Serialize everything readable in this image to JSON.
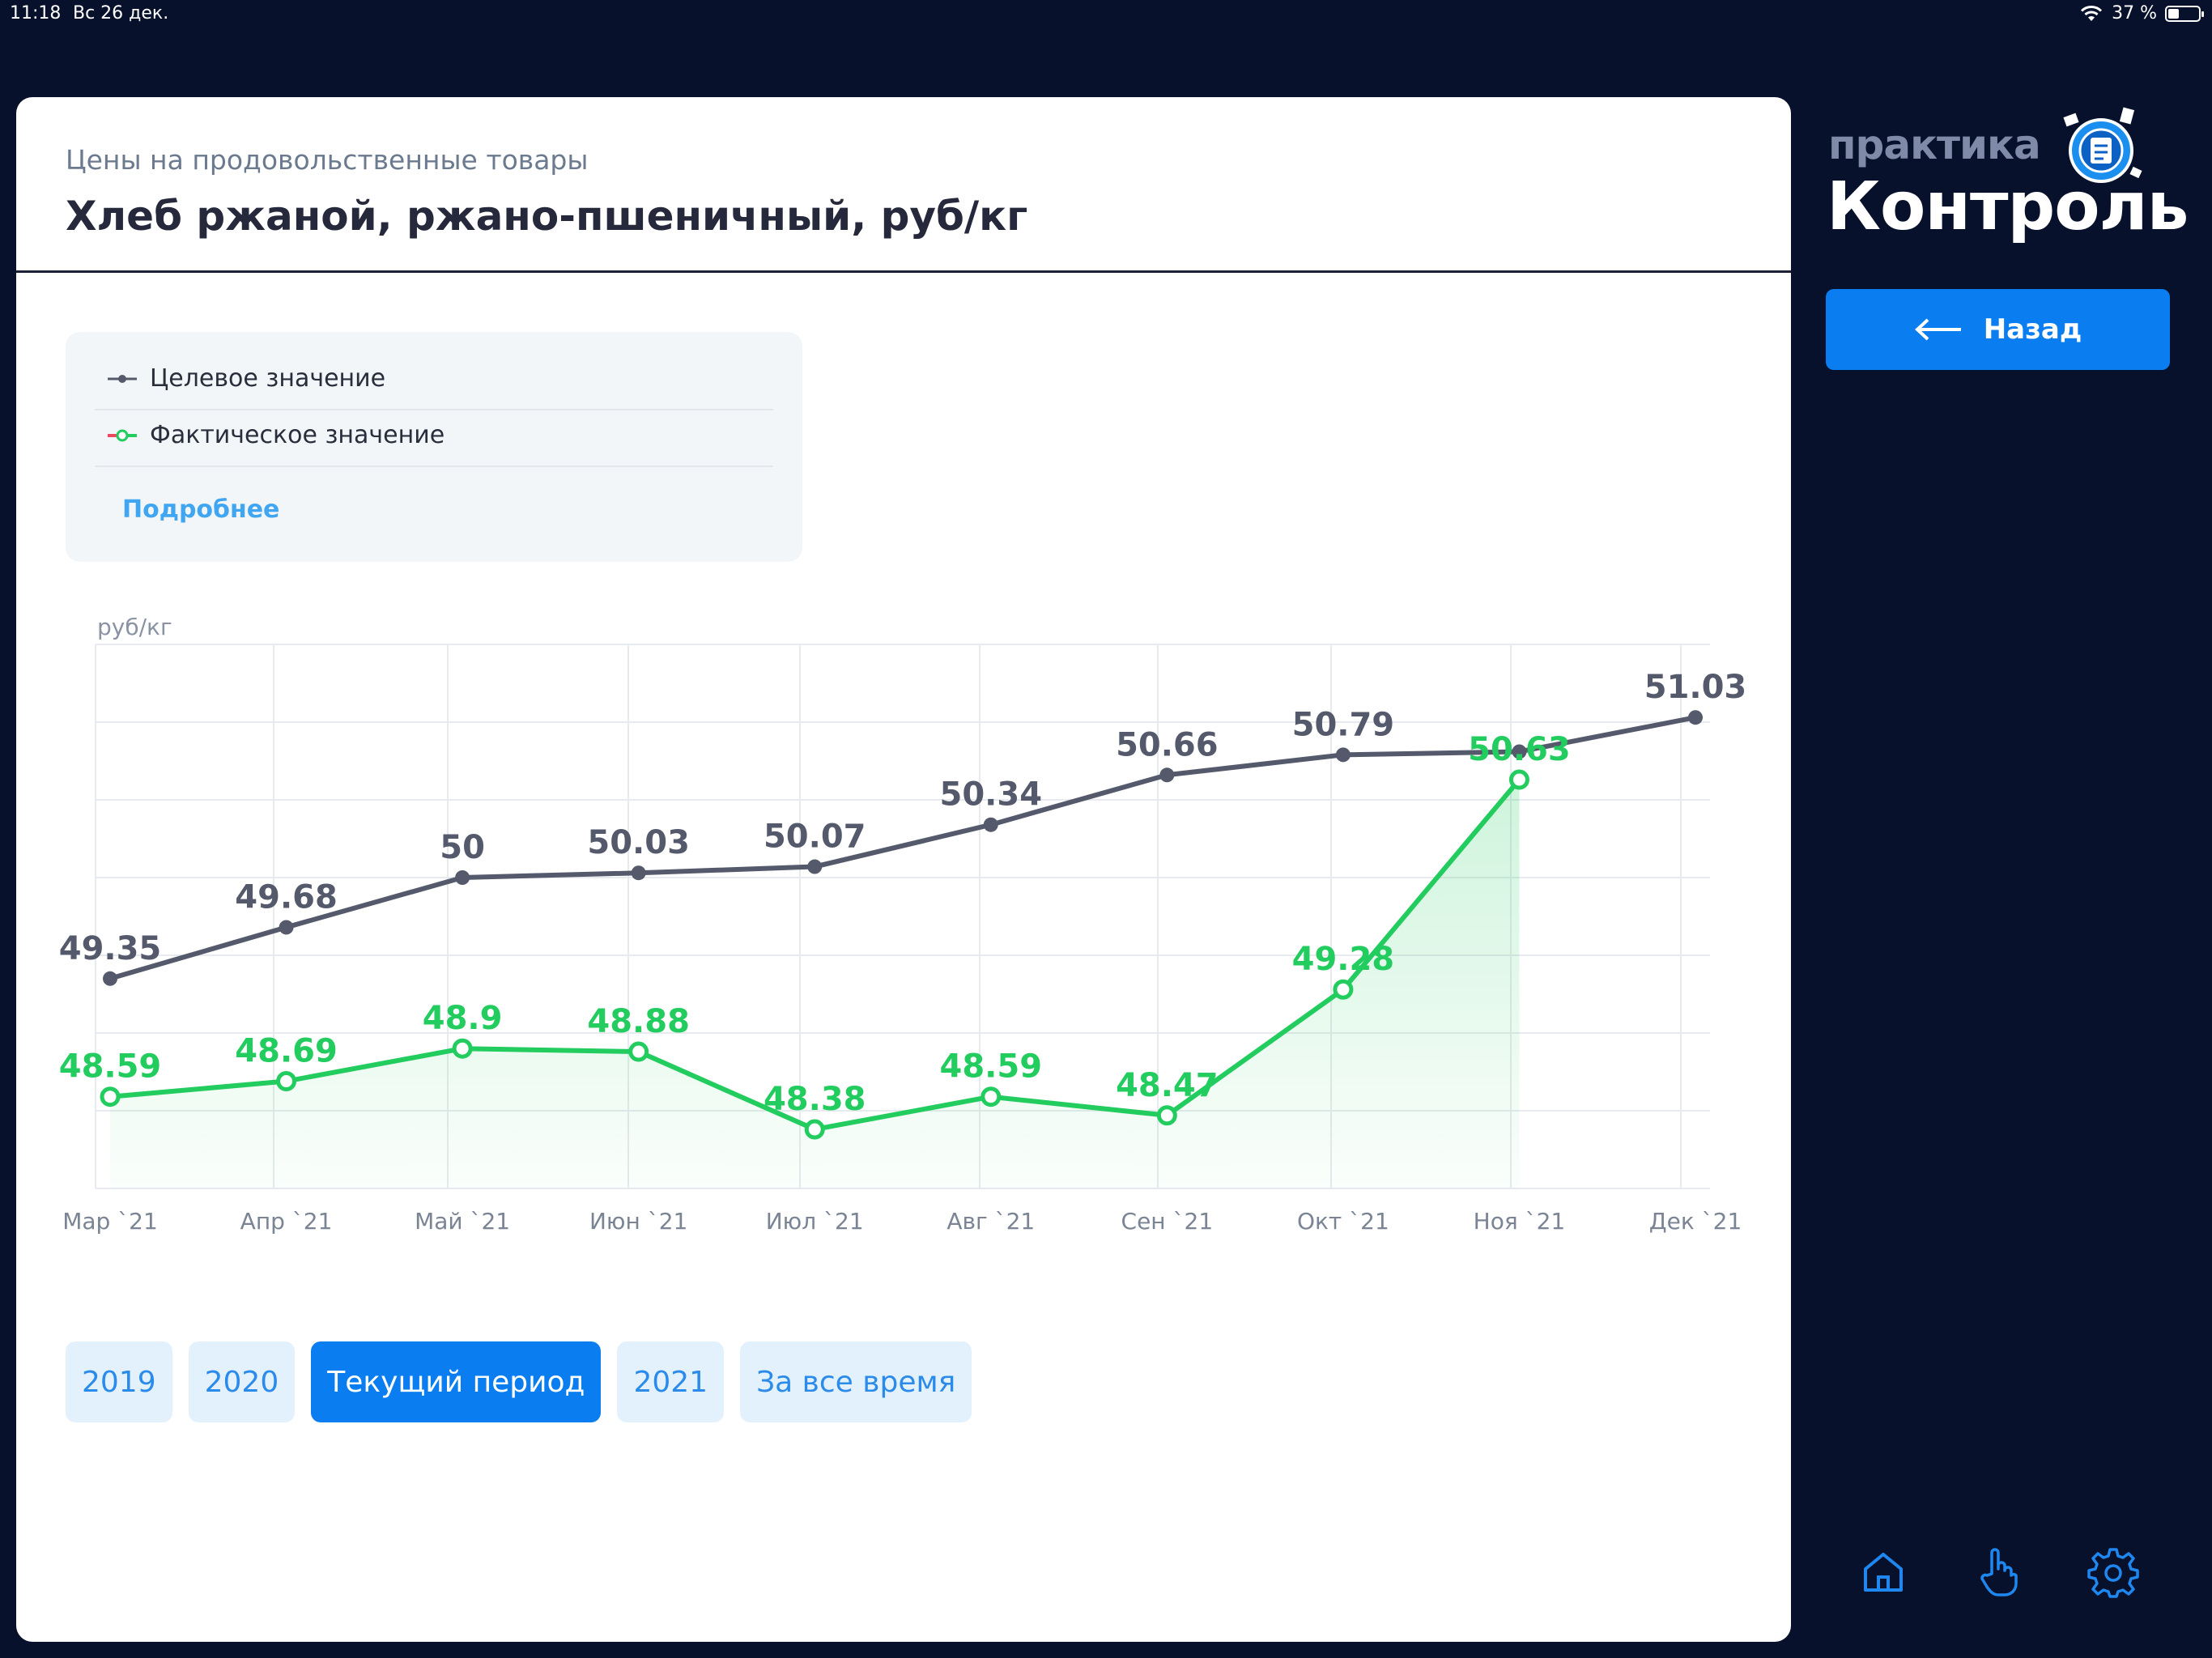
{
  "status": {
    "time": "11:18",
    "date": "Вс 26 дек.",
    "battery": "37 %",
    "battery_level": 0.37
  },
  "header": {
    "subtitle": "Цены на продовольственные товары",
    "title": "Хлеб ржаной, ржано-пшеничный, руб/кг"
  },
  "legend": {
    "target_label": "Целевое значение",
    "actual_label": "Фактическое значение",
    "more_link": "Подробнее"
  },
  "chart_data": {
    "type": "line",
    "ylabel": "руб/кг",
    "categories": [
      "Мар `21",
      "Апр `21",
      "Май `21",
      "Июн `21",
      "Июл `21",
      "Авг `21",
      "Сен `21",
      "Окт `21",
      "Ноя `21",
      "Дек `21"
    ],
    "grid": true,
    "series": [
      {
        "name": "Целевое значение",
        "color": "#545a6c",
        "values": [
          49.35,
          49.68,
          50,
          50.03,
          50.07,
          50.34,
          50.66,
          50.79,
          50.81,
          51.03
        ],
        "labels": [
          "49.35",
          "49.68",
          "50",
          "50.03",
          "50.07",
          "50.34",
          "50.66",
          "50.79",
          "",
          "51.03"
        ]
      },
      {
        "name": "Фактическое значение",
        "color": "#22cc5e",
        "values": [
          48.59,
          48.69,
          48.9,
          48.88,
          48.38,
          48.59,
          48.47,
          49.28,
          50.63,
          null
        ],
        "labels": [
          "48.59",
          "48.69",
          "48.9",
          "48.88",
          "48.38",
          "48.59",
          "48.47",
          "49.28",
          "50.63",
          ""
        ]
      }
    ]
  },
  "periods": [
    {
      "label": "2019",
      "active": false
    },
    {
      "label": "2020",
      "active": false
    },
    {
      "label": "Текущий период",
      "active": true
    },
    {
      "label": "2021",
      "active": false
    },
    {
      "label": "За все время",
      "active": false
    }
  ],
  "brand": {
    "top": "практика",
    "main": "Контроль"
  },
  "nav": {
    "back_label": "Назад"
  },
  "colors": {
    "background": "#07112b",
    "accent": "#0a7ef0",
    "target": "#545a6c",
    "actual": "#22cc5e"
  },
  "icons": {
    "home": "home-icon",
    "touch": "hand-pointer-icon",
    "settings": "gear-icon"
  }
}
